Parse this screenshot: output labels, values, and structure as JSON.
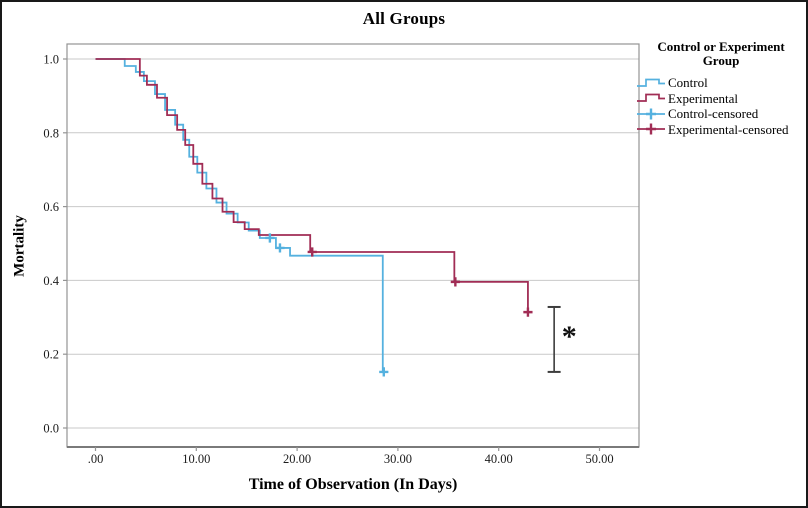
{
  "figure": {
    "background": "#ffffff",
    "border_color": "#191919"
  },
  "chart_data": {
    "type": "line",
    "subtype": "kaplan-meier-step",
    "title": "All Groups",
    "xlabel": "Time of Observation (In Days)",
    "ylabel": "Mortality",
    "xlim": [
      0,
      50
    ],
    "ylim": [
      0.0,
      1.0
    ],
    "grid": true,
    "x_ticks": [
      ".00",
      "10.00",
      "20.00",
      "30.00",
      "40.00",
      "50.00"
    ],
    "x_tick_values": [
      0,
      10,
      20,
      30,
      40,
      50
    ],
    "y_ticks": [
      "1.0",
      "0.8",
      "0.6",
      "0.4",
      "0.2",
      "0.0"
    ],
    "y_tick_values": [
      1.0,
      0.8,
      0.6,
      0.4,
      0.2,
      0.0
    ],
    "colors": {
      "control": "#55B1DF",
      "experimental": "#A12D55",
      "grid": "#c9c9c9",
      "frame": "#949494",
      "axis_bottom": "#7a7a7a",
      "error_bar": "#3d3d3d",
      "text": "#1c1c1c"
    },
    "series": [
      {
        "name": "Control",
        "color": "#55B1DF",
        "start": [
          0,
          1.0
        ],
        "steps": [
          [
            2.9,
            0.981
          ],
          [
            4.0,
            0.965
          ],
          [
            4.8,
            0.94
          ],
          [
            5.9,
            0.905
          ],
          [
            6.9,
            0.862
          ],
          [
            7.9,
            0.822
          ],
          [
            8.7,
            0.781
          ],
          [
            9.3,
            0.735
          ],
          [
            10.1,
            0.692
          ],
          [
            11.0,
            0.649
          ],
          [
            12.0,
            0.611
          ],
          [
            13.0,
            0.581
          ],
          [
            14.1,
            0.557
          ],
          [
            15.2,
            0.535
          ],
          [
            16.3,
            0.515
          ],
          [
            17.9,
            0.488
          ],
          [
            19.3,
            0.467
          ],
          [
            28.5,
            0.152
          ]
        ],
        "end_time": 28.8
      },
      {
        "name": "Experimental",
        "color": "#A12D55",
        "start": [
          0,
          1.0
        ],
        "steps": [
          [
            4.4,
            0.955
          ],
          [
            5.1,
            0.93
          ],
          [
            6.1,
            0.895
          ],
          [
            7.1,
            0.848
          ],
          [
            8.1,
            0.808
          ],
          [
            8.9,
            0.767
          ],
          [
            9.7,
            0.716
          ],
          [
            10.6,
            0.662
          ],
          [
            11.6,
            0.622
          ],
          [
            12.6,
            0.586
          ],
          [
            13.7,
            0.558
          ],
          [
            14.8,
            0.539
          ],
          [
            16.2,
            0.523
          ],
          [
            21.3,
            0.477
          ],
          [
            35.6,
            0.396
          ],
          [
            42.9,
            0.314
          ]
        ],
        "end_time": 43.1
      }
    ],
    "censored": [
      {
        "name": "Control-censored",
        "color": "#55B1DF",
        "points": [
          [
            17.3,
            0.515
          ],
          [
            18.3,
            0.488
          ],
          [
            28.6,
            0.152
          ]
        ]
      },
      {
        "name": "Experimental-censored",
        "color": "#A12D55",
        "points": [
          [
            21.5,
            0.477
          ],
          [
            35.7,
            0.396
          ],
          [
            42.9,
            0.314
          ]
        ]
      }
    ],
    "annotation": {
      "symbol": "*",
      "symbol_pos": [
        47.0,
        0.26
      ],
      "error_bar": {
        "time": 45.5,
        "v_top": 0.328,
        "v_bottom": 0.152
      }
    }
  },
  "legend": {
    "title_line1": "Control or Experiment",
    "title_line2": "Group",
    "items": [
      {
        "label": "Control",
        "swatch": "step",
        "color": "#55B1DF"
      },
      {
        "label": "Experimental",
        "swatch": "step",
        "color": "#A12D55"
      },
      {
        "label": "Control-censored",
        "swatch": "censored",
        "color": "#55B1DF"
      },
      {
        "label": "Experimental-censored",
        "swatch": "censored",
        "color": "#A12D55"
      }
    ]
  }
}
